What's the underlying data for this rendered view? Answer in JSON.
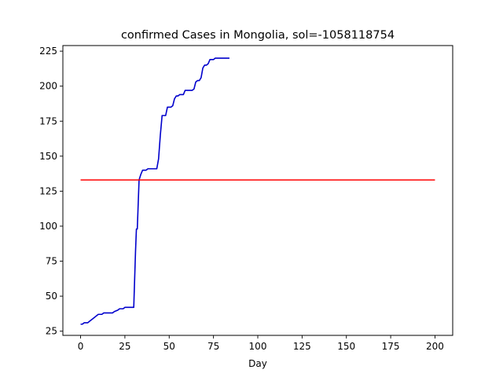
{
  "chart_data": {
    "type": "line",
    "title": "confirmed Cases in Mongolia, sol=-1058118754",
    "xlabel": "Day",
    "ylabel": "",
    "xlim": [
      -10,
      210
    ],
    "ylim": [
      22,
      229
    ],
    "xticks": [
      0,
      25,
      50,
      75,
      100,
      125,
      150,
      175,
      200
    ],
    "yticks": [
      25,
      50,
      75,
      100,
      125,
      150,
      175,
      200,
      225
    ],
    "grid": false,
    "legend": "none",
    "series": [
      {
        "color": "#0000cc",
        "x": [
          0,
          1,
          2,
          4,
          5,
          7,
          9,
          10,
          12,
          13,
          14,
          15,
          18,
          19,
          21,
          22,
          23,
          24,
          25,
          26,
          27,
          28,
          29,
          30,
          31,
          31.5,
          32,
          33,
          34,
          35,
          36,
          37,
          38,
          39,
          40,
          42,
          43,
          44,
          45,
          46,
          47,
          48,
          49,
          50,
          51,
          52,
          53,
          54,
          55,
          56,
          57,
          58,
          59,
          60,
          62,
          63,
          64,
          65,
          66,
          67,
          68,
          69,
          70,
          71,
          72,
          73,
          74,
          75,
          76,
          77,
          78,
          80,
          82,
          84
        ],
        "y": [
          30,
          30,
          31,
          31,
          32,
          34,
          36,
          37,
          37,
          38,
          38,
          38,
          38,
          39,
          40,
          41,
          41,
          41,
          42,
          42,
          42,
          42,
          42,
          42,
          82,
          98,
          98,
          133,
          137,
          140,
          140,
          140,
          141,
          141,
          141,
          141,
          141,
          148,
          165,
          179,
          179,
          179,
          185,
          185,
          185,
          186,
          191,
          193,
          193,
          194,
          194,
          194,
          197,
          197,
          197,
          197,
          198,
          203,
          204,
          204,
          206,
          213,
          215,
          215,
          216,
          219,
          219,
          219,
          220,
          220,
          220,
          220,
          220,
          220
        ]
      },
      {
        "color": "#ff0000",
        "x": [
          0,
          200
        ],
        "y": [
          133,
          133
        ]
      }
    ]
  }
}
